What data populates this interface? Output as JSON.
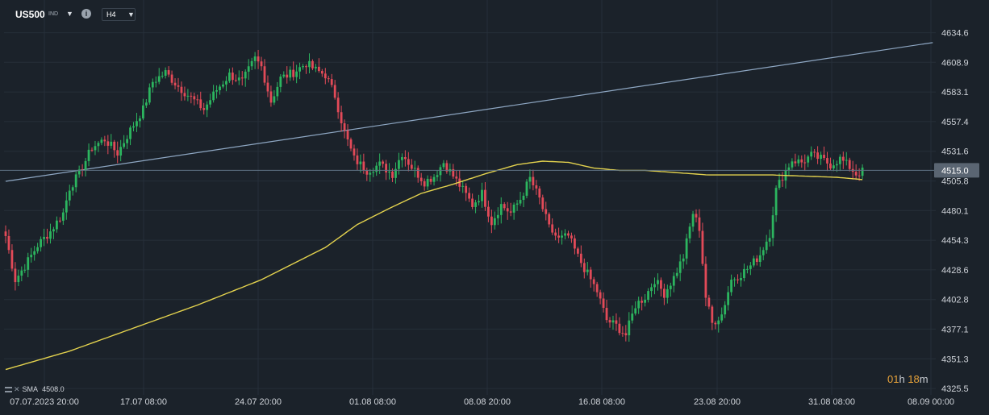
{
  "toolbar": {
    "symbol": "US500",
    "symbol_sub": "IND",
    "symbol_dropdown_icon": "caret-down-icon",
    "info_icon": "info-icon",
    "info_glyph": "i",
    "timeframe": "H4",
    "timeframe_dropdown_icon": "caret-down-icon"
  },
  "indicator": {
    "label": "SMA",
    "value": "4508.0",
    "icons": [
      "menu-icon",
      "close-icon"
    ]
  },
  "countdown": {
    "hours": "01",
    "hours_unit": "h",
    "minutes": "18",
    "minutes_unit": "m"
  },
  "colors": {
    "background": "#1b222a",
    "grid": "#262f39",
    "up": "#2cb55f",
    "down": "#e24a58",
    "sma": "#e3d24e",
    "trendline": "#8ea7c3",
    "price_line": "#5f7385",
    "price_tag": "#5a6572",
    "axis_text": "#d0d4da"
  },
  "chart_data": {
    "type": "candlestick",
    "title": "",
    "instrument": "US500",
    "timeframe": "H4",
    "xlabel": "",
    "ylabel": "",
    "ylim": [
      4320,
      4642
    ],
    "grid": true,
    "y_ticks": [
      "4634.6",
      "4608.9",
      "4583.1",
      "4557.4",
      "4531.6",
      "4505.8",
      "4480.1",
      "4454.3",
      "4428.6",
      "4402.8",
      "4377.1",
      "4351.3",
      "4325.5"
    ],
    "x_ticks": [
      "07.07.2023  20:00",
      "17.07  08:00",
      "24.07  20:00",
      "01.08  08:00",
      "08.08  20:00",
      "16.08  08:00",
      "23.08  20:00",
      "31.08  08:00",
      "08.09  00:00"
    ],
    "current_price": "4515.0",
    "close_anchors": [
      [
        0,
        4458
      ],
      [
        3,
        4420
      ],
      [
        6,
        4432
      ],
      [
        10,
        4450
      ],
      [
        14,
        4462
      ],
      [
        18,
        4478
      ],
      [
        20,
        4500
      ],
      [
        23,
        4512
      ],
      [
        27,
        4535
      ],
      [
        31,
        4542
      ],
      [
        35,
        4530
      ],
      [
        39,
        4550
      ],
      [
        43,
        4568
      ],
      [
        46,
        4592
      ],
      [
        50,
        4600
      ],
      [
        54,
        4588
      ],
      [
        58,
        4578
      ],
      [
        62,
        4568
      ],
      [
        66,
        4585
      ],
      [
        70,
        4598
      ],
      [
        74,
        4592
      ],
      [
        78,
        4612
      ],
      [
        80,
        4605
      ],
      [
        83,
        4575
      ],
      [
        86,
        4595
      ],
      [
        90,
        4600
      ],
      [
        94,
        4608
      ],
      [
        97,
        4602
      ],
      [
        100,
        4598
      ],
      [
        103,
        4580
      ],
      [
        106,
        4548
      ],
      [
        109,
        4525
      ],
      [
        113,
        4515
      ],
      [
        117,
        4520
      ],
      [
        121,
        4512
      ],
      [
        124,
        4530
      ],
      [
        127,
        4518
      ],
      [
        131,
        4505
      ],
      [
        134,
        4510
      ],
      [
        137,
        4522
      ],
      [
        140,
        4510
      ],
      [
        143,
        4498
      ],
      [
        146,
        4485
      ],
      [
        149,
        4495
      ],
      [
        152,
        4470
      ],
      [
        155,
        4485
      ],
      [
        158,
        4478
      ],
      [
        161,
        4490
      ],
      [
        164,
        4508
      ],
      [
        167,
        4490
      ],
      [
        170,
        4465
      ],
      [
        173,
        4455
      ],
      [
        176,
        4458
      ],
      [
        179,
        4440
      ],
      [
        182,
        4425
      ],
      [
        185,
        4410
      ],
      [
        188,
        4385
      ],
      [
        191,
        4380
      ],
      [
        194,
        4372
      ],
      [
        197,
        4398
      ],
      [
        200,
        4405
      ],
      [
        203,
        4420
      ],
      [
        206,
        4408
      ],
      [
        209,
        4422
      ],
      [
        212,
        4440
      ],
      [
        215,
        4478
      ],
      [
        217,
        4465
      ],
      [
        219,
        4405
      ],
      [
        221,
        4382
      ],
      [
        224,
        4390
      ],
      [
        227,
        4420
      ],
      [
        230,
        4425
      ],
      [
        233,
        4432
      ],
      [
        236,
        4442
      ],
      [
        239,
        4460
      ],
      [
        241,
        4498
      ],
      [
        243,
        4510
      ],
      [
        246,
        4524
      ],
      [
        249,
        4522
      ],
      [
        252,
        4528
      ],
      [
        255,
        4525
      ],
      [
        258,
        4520
      ],
      [
        261,
        4525
      ],
      [
        264,
        4518
      ],
      [
        266,
        4512
      ],
      [
        268,
        4514
      ]
    ],
    "sma_period_label": "SMA",
    "sma_value": "4508.0",
    "sma_anchors": [
      [
        0,
        4342
      ],
      [
        20,
        4358
      ],
      [
        40,
        4378
      ],
      [
        60,
        4398
      ],
      [
        80,
        4420
      ],
      [
        100,
        4448
      ],
      [
        110,
        4468
      ],
      [
        120,
        4482
      ],
      [
        130,
        4495
      ],
      [
        140,
        4503
      ],
      [
        150,
        4512
      ],
      [
        160,
        4520
      ],
      [
        168,
        4523
      ],
      [
        176,
        4522
      ],
      [
        184,
        4517
      ],
      [
        192,
        4515
      ],
      [
        200,
        4515
      ],
      [
        210,
        4513
      ],
      [
        220,
        4511
      ],
      [
        230,
        4511
      ],
      [
        240,
        4511
      ],
      [
        250,
        4510
      ],
      [
        260,
        4509
      ],
      [
        268,
        4507
      ]
    ],
    "trendline": {
      "from": [
        0,
        4505.5
      ],
      "to": [
        290,
        4626
      ]
    }
  }
}
